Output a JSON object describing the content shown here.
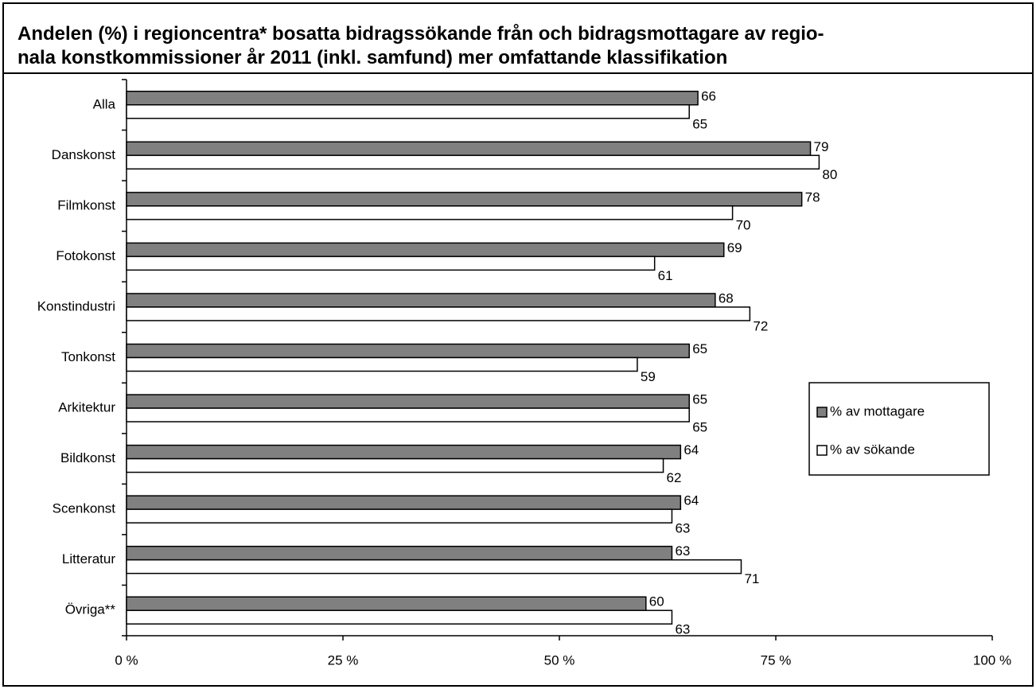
{
  "chart_data": {
    "type": "bar",
    "orientation": "horizontal",
    "title": [
      "Andelen (%) i regioncentra* bosatta bidragssökande från och bidragsmottagare av regio-",
      "nala konstkommissioner år 2011 (inkl. samfund) mer omfattande klassifikation"
    ],
    "categories": [
      "Alla",
      "Danskonst",
      "Filmkonst",
      "Fotokonst",
      "Konstindustri",
      "Tonkonst",
      "Arkitektur",
      "Bildkonst",
      "Scenkonst",
      "Litteratur",
      "Övriga**"
    ],
    "series": [
      {
        "name": "% av mottagare",
        "color": "#808080",
        "values": [
          66,
          79,
          78,
          69,
          68,
          65,
          65,
          64,
          64,
          63,
          60
        ]
      },
      {
        "name": "% av sökande",
        "color": "#ffffff",
        "values": [
          65,
          80,
          70,
          61,
          72,
          59,
          65,
          62,
          63,
          71,
          63
        ]
      }
    ],
    "xlim": [
      0,
      100
    ],
    "xticks": [
      {
        "value": 0,
        "label": "0 %"
      },
      {
        "value": 25,
        "label": "25 %"
      },
      {
        "value": 50,
        "label": "50 %"
      },
      {
        "value": 75,
        "label": "75 %"
      },
      {
        "value": 100,
        "label": "100 %"
      }
    ],
    "legend": "right"
  }
}
